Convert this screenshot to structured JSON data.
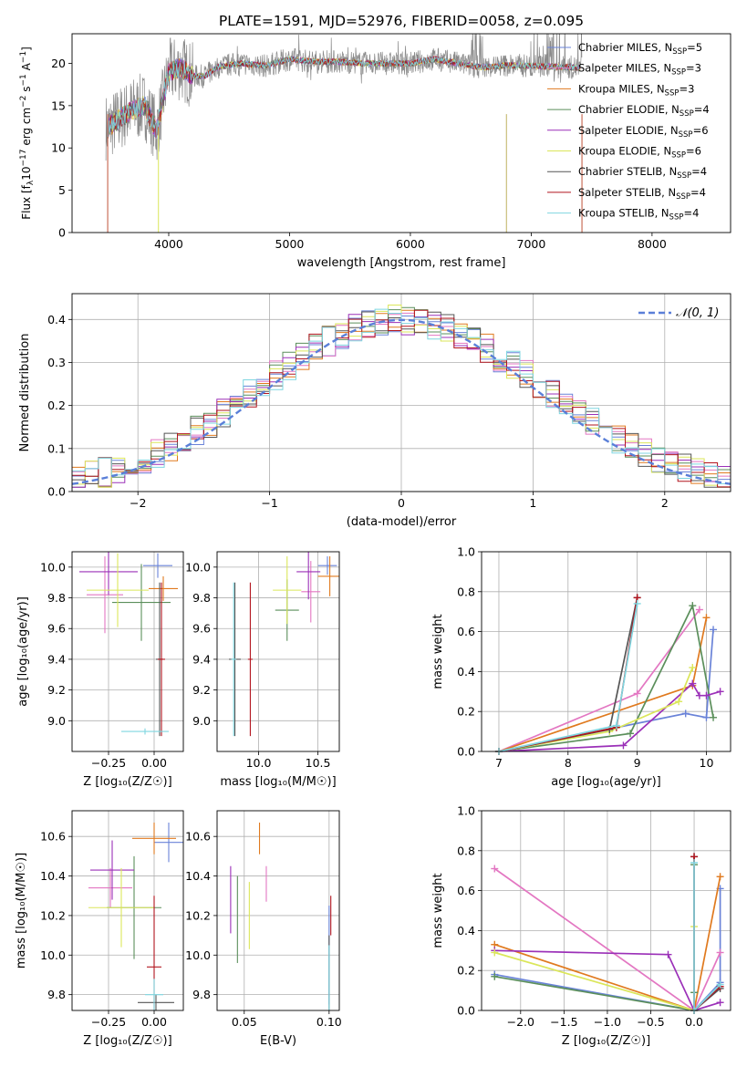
{
  "figure": {
    "title": "PLATE=1591, MJD=52976, FIBERID=0058, z=0.095"
  },
  "models": [
    {
      "label": "Chabrier MILES",
      "nssp": "5",
      "color": "#6a83d8"
    },
    {
      "label": "Salpeter MILES",
      "nssp": "3",
      "color": "#e377c2"
    },
    {
      "label": "Kroupa MILES",
      "nssp": "3",
      "color": "#e07a1f"
    },
    {
      "label": "Chabrier ELODIE",
      "nssp": "4",
      "color": "#5b8f5b"
    },
    {
      "label": "Salpeter ELODIE",
      "nssp": "6",
      "color": "#9b30b8"
    },
    {
      "label": "Kroupa ELODIE",
      "nssp": "6",
      "color": "#dbe65a"
    },
    {
      "label": "Chabrier STELIB",
      "nssp": "4",
      "color": "#555555"
    },
    {
      "label": "Salpeter STELIB",
      "nssp": "4",
      "color": "#b2141e"
    },
    {
      "label": "Kroupa STELIB",
      "nssp": "4",
      "color": "#7fd6e0"
    }
  ],
  "chart_data": [
    {
      "id": "spectrum",
      "type": "line",
      "xlabel": "wavelength [Angstrom, rest frame]",
      "ylabel": "Flux [f_λ 10^-17 erg cm^-2 s^-1 A^-1]",
      "xlim": [
        3200,
        8650
      ],
      "ylim": [
        0,
        23.5
      ],
      "xticks": [
        4000,
        5000,
        6000,
        7000,
        8000
      ],
      "yticks": [
        0,
        5,
        10,
        15,
        20
      ],
      "legend": "top-right",
      "series_note": "observed spectrum (grey) plus nine model fits",
      "data_x": [
        3500,
        3600,
        3700,
        3800,
        3900,
        4000,
        4100,
        4200,
        4300,
        4400,
        4500,
        4600,
        4800,
        5000,
        5200,
        5400,
        5600,
        5800,
        6000,
        6200,
        6400,
        6600,
        6800,
        7000,
        7200,
        7400
      ],
      "data_y": [
        12.5,
        13.5,
        14.5,
        15,
        12,
        19,
        19.5,
        18.5,
        18.5,
        19.5,
        19.8,
        20,
        19.7,
        20.5,
        20.2,
        20.2,
        20,
        20,
        20,
        20.5,
        20,
        19.5,
        19.8,
        19.7,
        19.6,
        19.5
      ]
    },
    {
      "id": "residuals",
      "type": "area",
      "xlabel": "(data-model)/error",
      "ylabel": "Normed distribution",
      "xlim": [
        -2.5,
        2.5
      ],
      "ylim": [
        0,
        0.46
      ],
      "xticks": [
        -2,
        -1,
        0,
        1,
        2
      ],
      "yticks": [
        0.0,
        0.1,
        0.2,
        0.3,
        0.4
      ],
      "legend": "top-right",
      "gaussian_label": "𝒩(0, 1)",
      "bin_width": 0.1
    },
    {
      "id": "age-vs-Z",
      "type": "scatter",
      "xlabel": "Z [log10(Z/Z☉)]",
      "ylabel": "age  [log10(age/yr)]",
      "xlim": [
        -0.45,
        0.16
      ],
      "ylim": [
        8.8,
        10.1
      ],
      "xticks": [
        -0.25,
        0.0
      ],
      "yticks": [
        9.0,
        9.2,
        9.4,
        9.6,
        9.8,
        10.0
      ],
      "points": [
        {
          "x": 0.02,
          "y": 10.01,
          "xerr": 0.08,
          "yerr": 0.08
        },
        {
          "x": -0.27,
          "y": 9.82,
          "xerr": 0.1,
          "yerr": 0.25
        },
        {
          "x": 0.05,
          "y": 9.86,
          "xerr": 0.08,
          "yerr": 0.08
        },
        {
          "x": -0.07,
          "y": 9.77,
          "xerr": 0.16,
          "yerr": 0.25
        },
        {
          "x": -0.25,
          "y": 9.97,
          "xerr": 0.16,
          "yerr": 0.15
        },
        {
          "x": -0.2,
          "y": 9.85,
          "xerr": 0.17,
          "yerr": 0.24
        },
        {
          "x": 0.03,
          "y": 9.4,
          "xerr": 0.02,
          "yerr": 0.5
        },
        {
          "x": 0.04,
          "y": 9.4,
          "xerr": 0.02,
          "yerr": 0.5
        },
        {
          "x": -0.05,
          "y": 8.93,
          "xerr": 0.13,
          "yerr": 0.02
        }
      ]
    },
    {
      "id": "age-vs-mass",
      "type": "scatter",
      "xlabel": "mass [log10(M/M☉)]",
      "ylabel": "",
      "xlim": [
        9.65,
        10.68
      ],
      "ylim": [
        8.8,
        10.1
      ],
      "xticks": [
        10.0,
        10.5
      ],
      "yticks": [
        9.0,
        9.2,
        9.4,
        9.6,
        9.8,
        10.0
      ],
      "points": [
        {
          "x": 10.58,
          "y": 10.01,
          "xerr": 0.08,
          "yerr": 0.06
        },
        {
          "x": 10.44,
          "y": 9.84,
          "xerr": 0.08,
          "yerr": 0.2
        },
        {
          "x": 10.6,
          "y": 9.94,
          "xerr": 0.1,
          "yerr": 0.13
        },
        {
          "x": 10.24,
          "y": 9.72,
          "xerr": 0.1,
          "yerr": 0.2
        },
        {
          "x": 10.42,
          "y": 9.97,
          "xerr": 0.1,
          "yerr": 0.18
        },
        {
          "x": 10.24,
          "y": 9.85,
          "xerr": 0.12,
          "yerr": 0.22
        },
        {
          "x": 9.8,
          "y": 9.4,
          "xerr": 0.05,
          "yerr": 0.5
        },
        {
          "x": 9.93,
          "y": 9.4,
          "xerr": 0.02,
          "yerr": 0.5
        },
        {
          "x": 9.79,
          "y": 9.4,
          "xerr": 0.02,
          "yerr": 0.5
        }
      ]
    },
    {
      "id": "weight-vs-age",
      "type": "line",
      "xlabel": "age  [log10(age/yr)]",
      "ylabel": "mass weight",
      "xlim": [
        6.75,
        10.35
      ],
      "ylim": [
        0,
        1.0
      ],
      "xticks": [
        7,
        8,
        9,
        10
      ],
      "yticks": [
        0.0,
        0.2,
        0.4,
        0.6,
        0.8,
        1.0
      ],
      "series": [
        {
          "x": [
            7.0,
            9.7,
            10.0,
            10.1
          ],
          "y": [
            0.0,
            0.19,
            0.17,
            0.61
          ]
        },
        {
          "x": [
            7.0,
            9.0,
            9.9
          ],
          "y": [
            0.0,
            0.29,
            0.71
          ]
        },
        {
          "x": [
            7.0,
            9.8,
            10.0
          ],
          "y": [
            0.0,
            0.33,
            0.67
          ]
        },
        {
          "x": [
            7.0,
            8.9,
            9.8,
            10.1
          ],
          "y": [
            0.0,
            0.09,
            0.73,
            0.17
          ]
        },
        {
          "x": [
            7.0,
            8.8,
            9.8,
            9.9,
            10.0,
            10.2
          ],
          "y": [
            0.0,
            0.03,
            0.34,
            0.28,
            0.28,
            0.3
          ]
        },
        {
          "x": [
            7.0,
            8.6,
            9.6,
            9.8
          ],
          "y": [
            0.0,
            0.1,
            0.25,
            0.42
          ]
        },
        {
          "x": [
            7.0,
            8.6,
            9.0
          ],
          "y": [
            0.0,
            0.11,
            0.77
          ]
        },
        {
          "x": [
            7.0,
            8.7,
            9.0
          ],
          "y": [
            0.0,
            0.12,
            0.77
          ]
        },
        {
          "x": [
            7.0,
            8.7,
            9.0
          ],
          "y": [
            0.0,
            0.13,
            0.74
          ]
        }
      ]
    },
    {
      "id": "mass-vs-Z",
      "type": "scatter",
      "xlabel": "Z [log10(Z/Z☉)]",
      "ylabel": "mass [log10(M/M☉)]",
      "xlim": [
        -0.45,
        0.16
      ],
      "ylim": [
        9.72,
        10.73
      ],
      "xticks": [
        -0.25,
        0.0
      ],
      "yticks": [
        9.8,
        10.0,
        10.2,
        10.4,
        10.6
      ],
      "points": [
        {
          "x": 0.08,
          "y": 10.57,
          "xerr": 0.08,
          "yerr": 0.1
        },
        {
          "x": -0.24,
          "y": 10.34,
          "xerr": 0.12,
          "yerr": 0.1
        },
        {
          "x": 0.0,
          "y": 10.59,
          "xerr": 0.12,
          "yerr": 0.08
        },
        {
          "x": -0.11,
          "y": 10.24,
          "xerr": 0.15,
          "yerr": 0.26
        },
        {
          "x": -0.23,
          "y": 10.43,
          "xerr": 0.12,
          "yerr": 0.15
        },
        {
          "x": -0.18,
          "y": 10.24,
          "xerr": 0.18,
          "yerr": 0.2
        },
        {
          "x": 0.01,
          "y": 9.76,
          "xerr": 0.1,
          "yerr": 0.04
        },
        {
          "x": 0.0,
          "y": 9.94,
          "xerr": 0.04,
          "yerr": 0.36
        },
        {
          "x": 0.0,
          "y": 9.8,
          "xerr": 0.05,
          "yerr": 0.08
        }
      ]
    },
    {
      "id": "mass-vs-EBV",
      "type": "scatter",
      "xlabel": "E(B-V)",
      "ylabel": "",
      "xlim": [
        0.034,
        0.106
      ],
      "ylim": [
        9.72,
        10.73
      ],
      "xticks": [
        0.05,
        0.1
      ],
      "yticks": [
        9.8,
        10.0,
        10.2,
        10.4,
        10.6
      ],
      "points": [
        {
          "x": 0.1,
          "y": 10.0,
          "xerr": 0.0,
          "yerr": 0.25
        },
        {
          "x": 0.063,
          "y": 10.36,
          "xerr": 0.0,
          "yerr": 0.09
        },
        {
          "x": 0.059,
          "y": 10.59,
          "xerr": 0.0,
          "yerr": 0.08
        },
        {
          "x": 0.046,
          "y": 10.18,
          "xerr": 0.0,
          "yerr": 0.22
        },
        {
          "x": 0.042,
          "y": 10.28,
          "xerr": 0.0,
          "yerr": 0.17
        },
        {
          "x": 0.053,
          "y": 10.2,
          "xerr": 0.0,
          "yerr": 0.17
        },
        {
          "x": 0.1,
          "y": 9.9,
          "xerr": 0.0,
          "yerr": 0.2
        },
        {
          "x": 0.101,
          "y": 10.2,
          "xerr": 0.0,
          "yerr": 0.1
        },
        {
          "x": 0.1,
          "y": 9.85,
          "xerr": 0.0,
          "yerr": 0.2
        }
      ]
    },
    {
      "id": "weight-vs-Z",
      "type": "line",
      "xlabel": "Z [log10(Z/Z☉)]",
      "ylabel": "mass weight",
      "xlim": [
        -2.45,
        0.42
      ],
      "ylim": [
        0,
        1.0
      ],
      "xticks": [
        -2.0,
        -1.5,
        -1.0,
        -0.5,
        0.0
      ],
      "yticks": [
        0.0,
        0.2,
        0.4,
        0.6,
        0.8,
        1.0
      ],
      "series": [
        {
          "x": [
            -2.3,
            0.0,
            0.3,
            0.3
          ],
          "y": [
            0.18,
            0.0,
            0.14,
            0.61
          ]
        },
        {
          "x": [
            -2.3,
            0.0,
            0.3
          ],
          "y": [
            0.71,
            0.0,
            0.29
          ]
        },
        {
          "x": [
            -2.3,
            0.0,
            0.3
          ],
          "y": [
            0.33,
            0.0,
            0.67
          ]
        },
        {
          "x": [
            -2.3,
            0.0,
            0.0,
            0.0
          ],
          "y": [
            0.17,
            0.0,
            0.73,
            0.09
          ]
        },
        {
          "x": [
            -2.3,
            -0.3,
            0.0,
            0.3
          ],
          "y": [
            0.3,
            0.28,
            0.0,
            0.04
          ]
        },
        {
          "x": [
            -2.3,
            0.0,
            0.0
          ],
          "y": [
            0.29,
            0.0,
            0.42
          ]
        },
        {
          "x": [
            0.0,
            0.0,
            0.3
          ],
          "y": [
            0.77,
            0.0,
            0.11
          ]
        },
        {
          "x": [
            0.0,
            0.0,
            0.3
          ],
          "y": [
            0.77,
            0.0,
            0.12
          ]
        },
        {
          "x": [
            0.0,
            0.0,
            0.3
          ],
          "y": [
            0.74,
            0.0,
            0.13
          ]
        }
      ]
    }
  ]
}
